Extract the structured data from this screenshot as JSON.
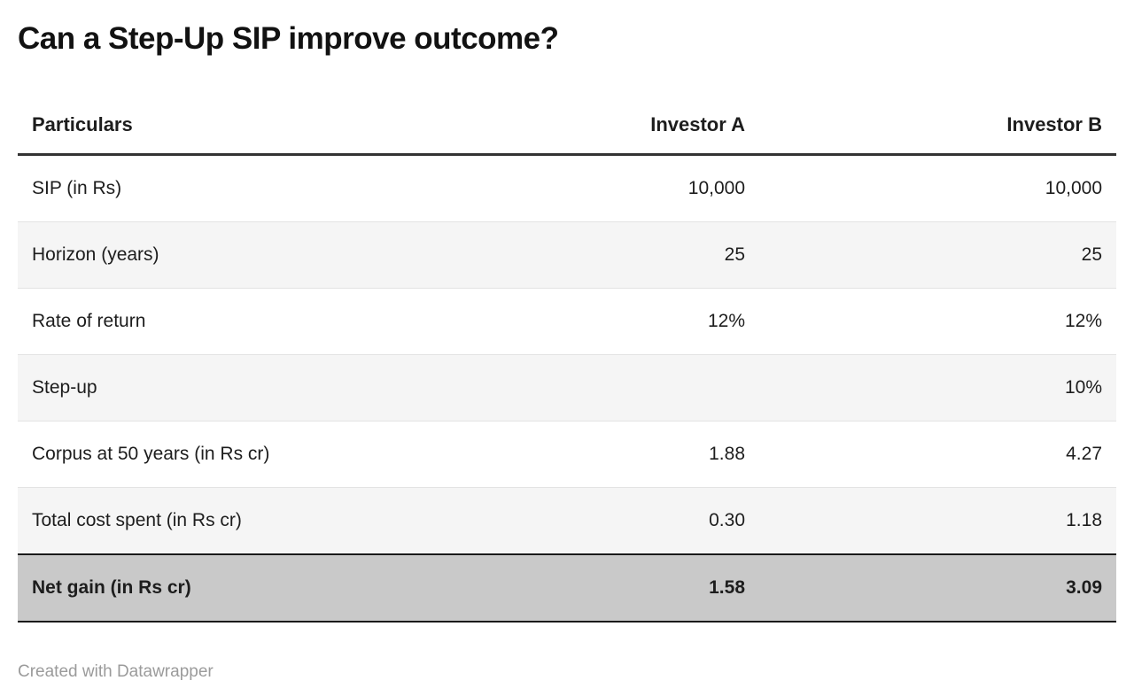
{
  "chart_data": {
    "type": "table",
    "title": "Can a Step-Up SIP improve outcome?",
    "columns": [
      "Particulars",
      "Investor A",
      "Investor B"
    ],
    "rows": [
      [
        "SIP (in Rs)",
        "10,000",
        "10,000"
      ],
      [
        "Horizon (years)",
        "25",
        "25"
      ],
      [
        "Rate of return",
        "12%",
        "12%"
      ],
      [
        "Step-up",
        "",
        "10%"
      ],
      [
        "Corpus at 50 years (in Rs cr)",
        "1.88",
        "4.27"
      ],
      [
        "Total cost spent (in Rs cr)",
        "0.30",
        "1.18"
      ],
      [
        "Net gain (in Rs cr)",
        "1.58",
        "3.09"
      ]
    ],
    "highlighted_row": "Net gain (in Rs cr)",
    "footer": "Created with Datawrapper",
    "layout_hints": {
      "value_alignment": "right",
      "zebra_striping": true
    }
  },
  "colors": {
    "text": "#1d1d1d",
    "stripe_row_bg": "#f5f5f5",
    "highlight_row_bg": "#c9c9c9",
    "highlight_row_border": "#1a1a1a",
    "header_rule": "#333333",
    "row_divider": "#e3e3e3",
    "attribution_text": "#9b9b9b"
  }
}
